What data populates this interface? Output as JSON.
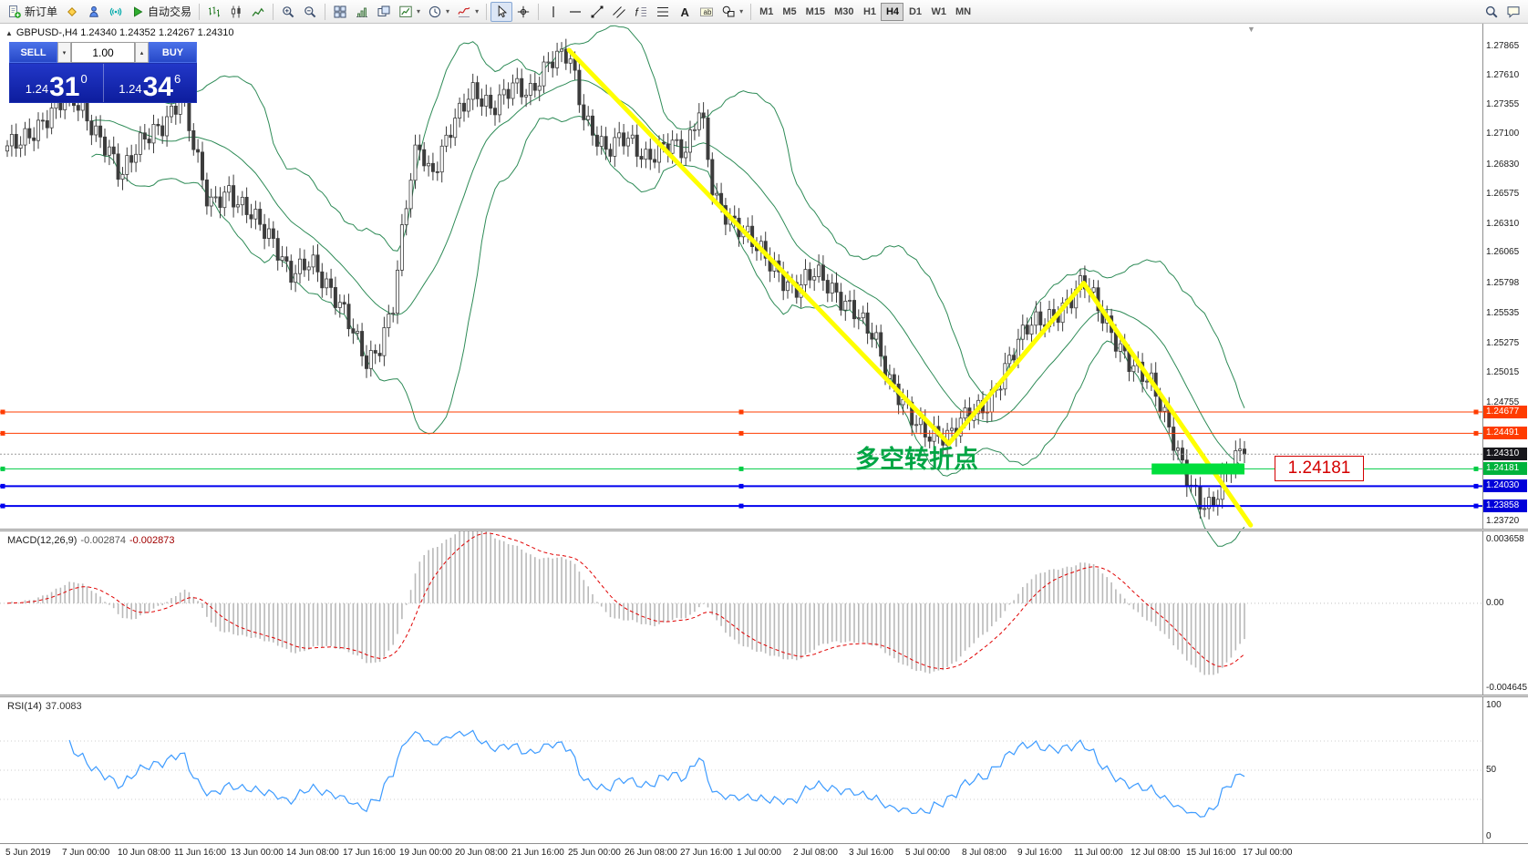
{
  "icons": {
    "caret": "▾",
    "collapse": "▲",
    "shift_marker": "▼",
    "vol_down": "▾",
    "vol_up": "▴"
  },
  "toolbar": {
    "timeframes": [
      "M1",
      "M5",
      "M15",
      "M30",
      "H1",
      "H4",
      "D1",
      "W1",
      "MN"
    ],
    "active_timeframe": "H4",
    "items": [
      {
        "type": "btn",
        "name": "new-order-button",
        "icon": "doc-new",
        "label": "新订单"
      },
      {
        "type": "btn",
        "name": "metaeditor-button",
        "icon": "diamond"
      },
      {
        "type": "btn",
        "name": "market-button",
        "icon": "person"
      },
      {
        "type": "btn",
        "name": "signals-button",
        "icon": "signals"
      },
      {
        "type": "btn",
        "name": "autotrading-button",
        "icon": "play",
        "label": "自动交易"
      },
      {
        "type": "sep"
      },
      {
        "type": "btn",
        "name": "bar-chart-button",
        "icon": "bars"
      },
      {
        "type": "btn",
        "name": "candlestick-chart-button",
        "icon": "candles"
      },
      {
        "type": "btn",
        "name": "line-chart-button",
        "icon": "linechart"
      },
      {
        "type": "sep"
      },
      {
        "type": "btn",
        "name": "zoom-in-button",
        "icon": "zoom-in"
      },
      {
        "type": "btn",
        "name": "zoom-out-button",
        "icon": "zoom-out"
      },
      {
        "type": "sep"
      },
      {
        "type": "btn",
        "name": "tile-windows-button",
        "icon": "tile"
      },
      {
        "type": "btn",
        "name": "auto-scroll-button",
        "icon": "step"
      },
      {
        "type": "btn",
        "name": "chart-shift-button",
        "icon": "cascade"
      },
      {
        "type": "btn",
        "name": "new-chart-button",
        "icon": "newchart",
        "caret": true
      },
      {
        "type": "btn",
        "name": "periods-button",
        "icon": "clock",
        "caret": true
      },
      {
        "type": "btn",
        "name": "indicators-button",
        "icon": "indicator",
        "caret": true
      },
      {
        "type": "sep"
      },
      {
        "type": "btn",
        "name": "cursor-button",
        "icon": "cursor",
        "active": true
      },
      {
        "type": "btn",
        "name": "crosshair-button",
        "icon": "crosshair"
      },
      {
        "type": "sep"
      },
      {
        "type": "btn",
        "name": "vertical-line-button",
        "icon": "vline"
      },
      {
        "type": "btn",
        "name": "horizontal-line-button",
        "icon": "hline"
      },
      {
        "type": "btn",
        "name": "trendline-button",
        "icon": "trend"
      },
      {
        "type": "btn",
        "name": "channel-button",
        "icon": "channel"
      },
      {
        "type": "btn",
        "name": "fibonacci-button",
        "icon": "fibo"
      },
      {
        "type": "btn",
        "name": "levels-button",
        "icon": "levels"
      },
      {
        "type": "btn",
        "name": "text-button",
        "icon": "text"
      },
      {
        "type": "btn",
        "name": "label-button",
        "icon": "label"
      },
      {
        "type": "btn",
        "name": "shapes-button",
        "icon": "shapes",
        "caret": true
      },
      {
        "type": "sep"
      },
      {
        "type": "timeframes"
      },
      {
        "type": "spacer"
      },
      {
        "type": "btn",
        "name": "search-button",
        "icon": "search"
      },
      {
        "type": "btn",
        "name": "chat-button",
        "icon": "chat"
      }
    ]
  },
  "symbol_bar": {
    "text": "GBPUSD-,H4  1.24340 1.24352 1.24267 1.24310"
  },
  "trade_panel": {
    "sell_label": "SELL",
    "buy_label": "BUY",
    "volume": "1.00",
    "sell_prefix": "1.24",
    "sell_big": "31",
    "sell_sup": "0",
    "buy_prefix": "1.24",
    "buy_big": "34",
    "buy_sup": "6"
  },
  "annotations": {
    "pivot_text": "多空转折点",
    "price_tag": "1.24181"
  },
  "chart_data": {
    "type": "candlestick",
    "symbol": "GBPUSD-",
    "timeframe": "H4",
    "ohlc_current": {
      "open": 1.2434,
      "high": 1.24352,
      "low": 1.24267,
      "close": 1.2431
    },
    "bid": "1.24310",
    "ask": "1.24346",
    "y_range": [
      1.2366,
      1.2806
    ],
    "num_candles": 280,
    "price_ticks": [
      "1.27865",
      "1.27610",
      "1.27355",
      "1.27100",
      "1.26830",
      "1.26575",
      "1.26310",
      "1.26065",
      "1.25798",
      "1.25535",
      "1.25275",
      "1.25015",
      "1.24755",
      "1.23720"
    ],
    "price_path": [
      [
        0.0,
        1.2695
      ],
      [
        0.011,
        1.2705
      ],
      [
        0.027,
        1.2722
      ],
      [
        0.049,
        1.2741
      ],
      [
        0.065,
        1.2722
      ],
      [
        0.082,
        1.2701
      ],
      [
        0.092,
        1.2673
      ],
      [
        0.109,
        1.27
      ],
      [
        0.125,
        1.2719
      ],
      [
        0.141,
        1.2748
      ],
      [
        0.152,
        1.2692
      ],
      [
        0.163,
        1.2642
      ],
      [
        0.179,
        1.2661
      ],
      [
        0.196,
        1.2646
      ],
      [
        0.212,
        1.2616
      ],
      [
        0.228,
        1.2586
      ],
      [
        0.245,
        1.2606
      ],
      [
        0.261,
        1.2571
      ],
      [
        0.277,
        1.2541
      ],
      [
        0.291,
        1.2513
      ],
      [
        0.302,
        1.2531
      ],
      [
        0.313,
        1.2566
      ],
      [
        0.321,
        1.2638
      ],
      [
        0.332,
        1.27
      ],
      [
        0.342,
        1.2673
      ],
      [
        0.359,
        1.2721
      ],
      [
        0.375,
        1.2743
      ],
      [
        0.391,
        1.2729
      ],
      [
        0.408,
        1.2759
      ],
      [
        0.424,
        1.2744
      ],
      [
        0.44,
        1.2771
      ],
      [
        0.454,
        1.2783
      ],
      [
        0.467,
        1.2726
      ],
      [
        0.484,
        1.2691
      ],
      [
        0.5,
        1.2706
      ],
      [
        0.516,
        1.2693
      ],
      [
        0.533,
        1.2701
      ],
      [
        0.549,
        1.2689
      ],
      [
        0.56,
        1.2736
      ],
      [
        0.571,
        1.2661
      ],
      [
        0.587,
        1.2631
      ],
      [
        0.603,
        1.2611
      ],
      [
        0.62,
        1.2596
      ],
      [
        0.636,
        1.2576
      ],
      [
        0.652,
        1.2586
      ],
      [
        0.668,
        1.2571
      ],
      [
        0.685,
        1.2561
      ],
      [
        0.701,
        1.2531
      ],
      [
        0.712,
        1.2491
      ],
      [
        0.728,
        1.2471
      ],
      [
        0.745,
        1.2451
      ],
      [
        0.761,
        1.2441
      ],
      [
        0.777,
        1.2466
      ],
      [
        0.793,
        1.2479
      ],
      [
        0.81,
        1.2511
      ],
      [
        0.826,
        1.2541
      ],
      [
        0.842,
        1.2553
      ],
      [
        0.859,
        1.2566
      ],
      [
        0.87,
        1.2579
      ],
      [
        0.883,
        1.2553
      ],
      [
        0.897,
        1.2531
      ],
      [
        0.911,
        1.2509
      ],
      [
        0.924,
        1.2491
      ],
      [
        0.937,
        1.2456
      ],
      [
        0.951,
        1.2421
      ],
      [
        0.964,
        1.2393
      ],
      [
        0.973,
        1.2383
      ],
      [
        0.984,
        1.2406
      ],
      [
        0.992,
        1.2426
      ],
      [
        1.0,
        1.2431
      ]
    ],
    "bollinger": {
      "period": 20,
      "deviation": 2,
      "color": "#2e8b57"
    },
    "horizontal_lines": [
      {
        "price": 1.24677,
        "label": "1.24677",
        "line_color": "#ff3c00",
        "tag_color": "#ff3c00",
        "width": 1,
        "handles": true
      },
      {
        "price": 1.24491,
        "label": "1.24491",
        "line_color": "#ff3c00",
        "tag_color": "#ff3c00",
        "width": 1,
        "handles": true
      },
      {
        "price": 1.2431,
        "label": "1.24310",
        "line_color": "#9a9a9a",
        "tag_color": "#17171c",
        "width": 1,
        "style": "dotted"
      },
      {
        "price": 1.24181,
        "label": "1.24181",
        "line_color": "#00cc44",
        "tag_color": "#00b33c",
        "width": 1,
        "handles": true
      },
      {
        "price": 1.2403,
        "label": "1.24030",
        "line_color": "#0000ee",
        "tag_color": "#0000d9",
        "width": 2,
        "handles": true
      },
      {
        "price": 1.23858,
        "label": "1.23858",
        "line_color": "#0000ee",
        "tag_color": "#0000d9",
        "width": 2,
        "handles": true
      }
    ],
    "trendlines": [
      {
        "points": [
          [
            0.454,
            1.2783
          ],
          [
            0.761,
            1.244
          ]
        ],
        "color": "#ffff00",
        "width": 5
      },
      {
        "points": [
          [
            0.761,
            1.244
          ],
          [
            0.87,
            1.258
          ]
        ],
        "color": "#ffff00",
        "width": 5
      },
      {
        "points": [
          [
            0.87,
            1.258
          ],
          [
            1.005,
            1.2369
          ]
        ],
        "color": "#ffff00",
        "width": 5
      }
    ],
    "highlight_bar": {
      "t_start": 0.925,
      "t_end": 1.0,
      "price": 1.2418,
      "height": 12,
      "color": "#00de3c"
    },
    "macd": {
      "label": "MACD(12,26,9)",
      "value1": "-0.002874",
      "value2": "-0.002873",
      "fast": 12,
      "slow": 26,
      "signal": 9,
      "axis": [
        "0.003658",
        "0.00",
        "-0.004645"
      ],
      "y_range": [
        -0.004645,
        0.003658
      ]
    },
    "rsi": {
      "label": "RSI(14)",
      "value": "37.0083",
      "period": 14,
      "axis": [
        "100",
        "50",
        "0"
      ],
      "levels": [
        30,
        50,
        70
      ],
      "y_range": [
        0,
        100
      ]
    },
    "time_labels": [
      "5 Jun 2019",
      "7 Jun 00:00",
      "10 Jun 08:00",
      "11 Jun 16:00",
      "13 Jun 00:00",
      "14 Jun 08:00",
      "17 Jun 16:00",
      "19 Jun 00:00",
      "20 Jun 08:00",
      "21 Jun 16:00",
      "25 Jun 00:00",
      "26 Jun 08:00",
      "27 Jun 16:00",
      "1 Jul 00:00",
      "2 Jul 08:00",
      "3 Jul 16:00",
      "5 Jul 00:00",
      "8 Jul 08:00",
      "9 Jul 16:00",
      "11 Jul 00:00",
      "12 Jul 08:00",
      "15 Jul 16:00",
      "17 Jul 00:00"
    ]
  }
}
